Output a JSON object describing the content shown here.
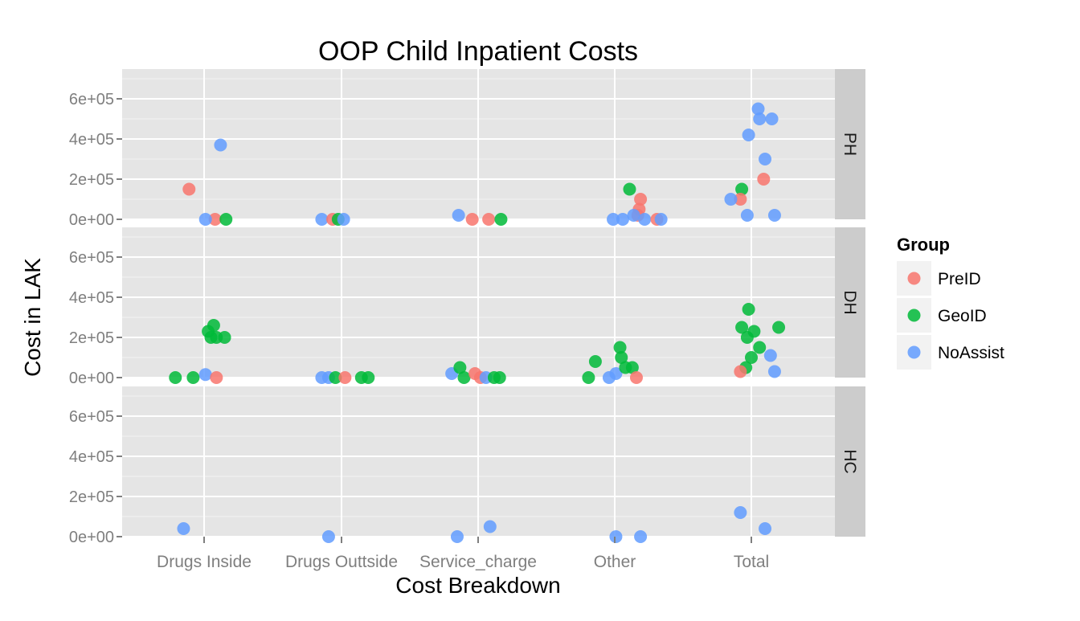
{
  "chart_data": {
    "type": "scatter",
    "title": "OOP Child Inpatient Costs",
    "xlabel": "Cost Breakdown",
    "ylabel": "Cost in LAK",
    "categories": [
      "Drugs Inside",
      "Drugs Outtside",
      "Service_charge",
      "Other",
      "Total"
    ],
    "y_ticks": [
      {
        "value": 0,
        "label": "0e+00"
      },
      {
        "value": 200000,
        "label": "2e+05"
      },
      {
        "value": 400000,
        "label": "4e+05"
      },
      {
        "value": 600000,
        "label": "6e+05"
      }
    ],
    "ylim": [
      -5000,
      750000
    ],
    "grid": true,
    "legend": {
      "title": "Group",
      "position": "right",
      "entries": [
        {
          "name": "PreID",
          "color": "#F8766D"
        },
        {
          "name": "GeoID",
          "color": "#00BA38"
        },
        {
          "name": "NoAssist",
          "color": "#619CFF"
        }
      ]
    },
    "facets": [
      {
        "label": "PH",
        "points": [
          {
            "group": "PreID",
            "x": 0.89,
            "y": 150000
          },
          {
            "group": "PreID",
            "x": 1.08,
            "y": 0
          },
          {
            "group": "GeoID",
            "x": 1.16,
            "y": 0
          },
          {
            "group": "NoAssist",
            "x": 1.01,
            "y": 0
          },
          {
            "group": "NoAssist",
            "x": 1.12,
            "y": 370000
          },
          {
            "group": "NoAssist",
            "x": 1.86,
            "y": 0
          },
          {
            "group": "PreID",
            "x": 1.94,
            "y": 0
          },
          {
            "group": "GeoID",
            "x": 1.98,
            "y": 0
          },
          {
            "group": "NoAssist",
            "x": 2.02,
            "y": 0
          },
          {
            "group": "NoAssist",
            "x": 2.86,
            "y": 20000
          },
          {
            "group": "PreID",
            "x": 2.96,
            "y": 0
          },
          {
            "group": "PreID",
            "x": 3.08,
            "y": 0
          },
          {
            "group": "GeoID",
            "x": 3.17,
            "y": 0
          },
          {
            "group": "NoAssist",
            "x": 3.99,
            "y": 0
          },
          {
            "group": "NoAssist",
            "x": 4.06,
            "y": 0
          },
          {
            "group": "GeoID",
            "x": 4.11,
            "y": 150000
          },
          {
            "group": "PreID",
            "x": 4.19,
            "y": 100000
          },
          {
            "group": "PreID",
            "x": 4.18,
            "y": 50000
          },
          {
            "group": "PreID",
            "x": 4.17,
            "y": 20000
          },
          {
            "group": "NoAssist",
            "x": 4.14,
            "y": 20000
          },
          {
            "group": "NoAssist",
            "x": 4.22,
            "y": 0
          },
          {
            "group": "PreID",
            "x": 4.31,
            "y": 0
          },
          {
            "group": "NoAssist",
            "x": 4.34,
            "y": 0
          },
          {
            "group": "NoAssist",
            "x": 4.98,
            "y": 420000
          },
          {
            "group": "NoAssist",
            "x": 5.05,
            "y": 550000
          },
          {
            "group": "NoAssist",
            "x": 5.06,
            "y": 500000
          },
          {
            "group": "NoAssist",
            "x": 5.15,
            "y": 500000
          },
          {
            "group": "NoAssist",
            "x": 5.1,
            "y": 300000
          },
          {
            "group": "PreID",
            "x": 5.09,
            "y": 200000
          },
          {
            "group": "GeoID",
            "x": 4.93,
            "y": 150000
          },
          {
            "group": "PreID",
            "x": 4.92,
            "y": 100000
          },
          {
            "group": "NoAssist",
            "x": 4.85,
            "y": 100000
          },
          {
            "group": "NoAssist",
            "x": 4.97,
            "y": 20000
          },
          {
            "group": "NoAssist",
            "x": 5.17,
            "y": 20000
          }
        ]
      },
      {
        "label": "DH",
        "points": [
          {
            "group": "GeoID",
            "x": 0.79,
            "y": 0
          },
          {
            "group": "GeoID",
            "x": 0.92,
            "y": 0
          },
          {
            "group": "NoAssist",
            "x": 1.01,
            "y": 15000
          },
          {
            "group": "PreID",
            "x": 1.09,
            "y": 0
          },
          {
            "group": "GeoID",
            "x": 1.03,
            "y": 230000
          },
          {
            "group": "GeoID",
            "x": 1.07,
            "y": 260000
          },
          {
            "group": "GeoID",
            "x": 1.05,
            "y": 200000
          },
          {
            "group": "GeoID",
            "x": 1.09,
            "y": 200000
          },
          {
            "group": "GeoID",
            "x": 1.15,
            "y": 200000
          },
          {
            "group": "NoAssist",
            "x": 1.86,
            "y": 0
          },
          {
            "group": "NoAssist",
            "x": 1.91,
            "y": 0
          },
          {
            "group": "GeoID",
            "x": 1.96,
            "y": 0
          },
          {
            "group": "PreID",
            "x": 2.03,
            "y": 0
          },
          {
            "group": "GeoID",
            "x": 2.15,
            "y": 0
          },
          {
            "group": "GeoID",
            "x": 2.2,
            "y": 0
          },
          {
            "group": "NoAssist",
            "x": 2.81,
            "y": 20000
          },
          {
            "group": "GeoID",
            "x": 2.87,
            "y": 50000
          },
          {
            "group": "GeoID",
            "x": 2.9,
            "y": 0
          },
          {
            "group": "PreID",
            "x": 2.98,
            "y": 20000
          },
          {
            "group": "PreID",
            "x": 3.02,
            "y": 0
          },
          {
            "group": "NoAssist",
            "x": 3.06,
            "y": 0
          },
          {
            "group": "GeoID",
            "x": 3.12,
            "y": 0
          },
          {
            "group": "GeoID",
            "x": 3.16,
            "y": 0
          },
          {
            "group": "GeoID",
            "x": 3.81,
            "y": 0
          },
          {
            "group": "GeoID",
            "x": 3.86,
            "y": 80000
          },
          {
            "group": "NoAssist",
            "x": 3.96,
            "y": 0
          },
          {
            "group": "NoAssist",
            "x": 4.01,
            "y": 20000
          },
          {
            "group": "GeoID",
            "x": 4.04,
            "y": 150000
          },
          {
            "group": "GeoID",
            "x": 4.05,
            "y": 100000
          },
          {
            "group": "GeoID",
            "x": 4.08,
            "y": 50000
          },
          {
            "group": "GeoID",
            "x": 4.13,
            "y": 50000
          },
          {
            "group": "PreID",
            "x": 4.16,
            "y": 0
          },
          {
            "group": "GeoID",
            "x": 4.93,
            "y": 250000
          },
          {
            "group": "GeoID",
            "x": 4.98,
            "y": 340000
          },
          {
            "group": "GeoID",
            "x": 5.02,
            "y": 230000
          },
          {
            "group": "GeoID",
            "x": 4.97,
            "y": 200000
          },
          {
            "group": "GeoID",
            "x": 5.06,
            "y": 150000
          },
          {
            "group": "GeoID",
            "x": 5.0,
            "y": 100000
          },
          {
            "group": "GeoID",
            "x": 4.96,
            "y": 50000
          },
          {
            "group": "GeoID",
            "x": 5.2,
            "y": 250000
          },
          {
            "group": "PreID",
            "x": 4.92,
            "y": 30000
          },
          {
            "group": "NoAssist",
            "x": 5.14,
            "y": 110000
          },
          {
            "group": "NoAssist",
            "x": 5.17,
            "y": 30000
          }
        ]
      },
      {
        "label": "HC",
        "points": [
          {
            "group": "NoAssist",
            "x": 0.85,
            "y": 40000
          },
          {
            "group": "NoAssist",
            "x": 1.91,
            "y": 0
          },
          {
            "group": "NoAssist",
            "x": 2.85,
            "y": 0
          },
          {
            "group": "NoAssist",
            "x": 3.09,
            "y": 50000
          },
          {
            "group": "NoAssist",
            "x": 4.01,
            "y": 0
          },
          {
            "group": "NoAssist",
            "x": 4.19,
            "y": 0
          },
          {
            "group": "NoAssist",
            "x": 4.92,
            "y": 120000
          },
          {
            "group": "NoAssist",
            "x": 5.1,
            "y": 40000
          }
        ]
      }
    ]
  }
}
